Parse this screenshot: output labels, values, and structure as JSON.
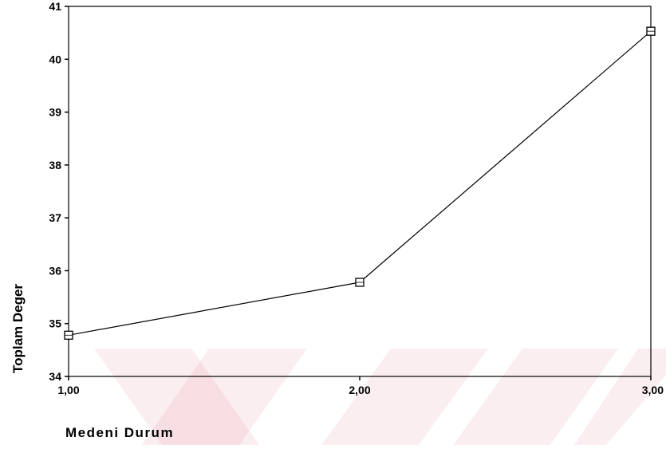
{
  "chart_data": {
    "type": "line",
    "x": [
      "1,00",
      "2,00",
      "3,00"
    ],
    "series": [
      {
        "values": [
          34.78,
          35.78,
          40.53
        ]
      }
    ],
    "xlabel": "Medeni Durum",
    "ylabel": "Toplam Deger",
    "ylim": [
      34,
      41
    ],
    "yticks": [
      "34",
      "35",
      "36",
      "37",
      "38",
      "39",
      "40",
      "41"
    ],
    "grid": false,
    "marker": "square"
  },
  "colors": {
    "line": "#000000",
    "watermark": "#c8102e",
    "background": "#ffffff"
  }
}
